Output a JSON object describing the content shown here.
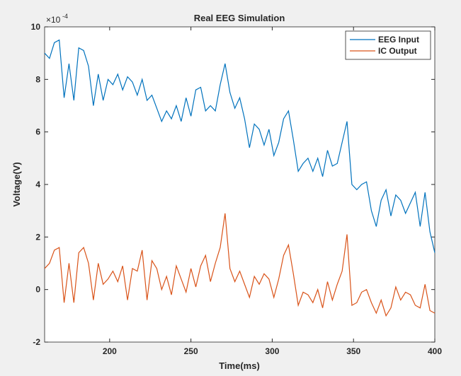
{
  "chart_data": {
    "type": "line",
    "title": "Real EEG Simulation",
    "x_label": "Time(ms)",
    "y_label": "Voltage(V)",
    "y_exponent_base": "×10",
    "y_exponent_power": "-4",
    "x": [
      160,
      163,
      166,
      169,
      172,
      175,
      178,
      181,
      184,
      187,
      190,
      193,
      196,
      199,
      202,
      205,
      208,
      211,
      214,
      217,
      220,
      223,
      226,
      229,
      232,
      235,
      238,
      241,
      244,
      247,
      250,
      253,
      256,
      259,
      262,
      265,
      268,
      271,
      274,
      277,
      280,
      283,
      286,
      289,
      292,
      295,
      298,
      301,
      304,
      307,
      310,
      313,
      316,
      319,
      322,
      325,
      328,
      331,
      334,
      337,
      340,
      343,
      346,
      349,
      352,
      355,
      358,
      361,
      364,
      367,
      370,
      373,
      376,
      379,
      382,
      385,
      388,
      391,
      394,
      397,
      400
    ],
    "series": [
      {
        "name": "EEG Input",
        "color": "#0072bd",
        "values": [
          9.0,
          8.8,
          9.4,
          9.5,
          7.3,
          8.6,
          7.2,
          9.2,
          9.1,
          8.5,
          7.0,
          8.2,
          7.2,
          8.0,
          7.8,
          8.2,
          7.6,
          8.1,
          7.9,
          7.4,
          8.0,
          7.2,
          7.4,
          6.9,
          6.4,
          6.8,
          6.5,
          7.0,
          6.4,
          7.3,
          6.6,
          7.6,
          7.7,
          6.8,
          7.0,
          6.8,
          7.8,
          8.6,
          7.5,
          6.9,
          7.3,
          6.5,
          5.4,
          6.3,
          6.1,
          5.5,
          6.1,
          5.1,
          5.6,
          6.5,
          6.8,
          5.7,
          4.5,
          4.8,
          5.0,
          4.5,
          5.0,
          4.3,
          5.3,
          4.7,
          4.8,
          5.6,
          6.4,
          4.0,
          3.8,
          4.0,
          4.1,
          3.0,
          2.4,
          3.4,
          3.8,
          2.8,
          3.6,
          3.4,
          2.9,
          3.3,
          3.7,
          2.4,
          3.7,
          2.2,
          1.4
        ]
      },
      {
        "name": "IC Output",
        "color": "#d95319",
        "values": [
          0.8,
          1.0,
          1.5,
          1.6,
          -0.5,
          1.0,
          -0.5,
          1.4,
          1.6,
          1.0,
          -0.4,
          1.0,
          0.2,
          0.4,
          0.7,
          0.3,
          0.9,
          -0.4,
          0.8,
          0.7,
          1.5,
          -0.4,
          1.1,
          0.8,
          0.0,
          0.5,
          -0.2,
          0.9,
          0.4,
          -0.1,
          0.8,
          0.1,
          0.9,
          1.3,
          0.3,
          1.0,
          1.6,
          2.9,
          0.8,
          0.3,
          0.7,
          0.2,
          -0.3,
          0.5,
          0.2,
          0.6,
          0.4,
          -0.3,
          0.4,
          1.3,
          1.7,
          0.6,
          -0.6,
          -0.1,
          -0.2,
          -0.5,
          0.0,
          -0.7,
          0.3,
          -0.4,
          0.2,
          0.7,
          2.1,
          -0.6,
          -0.5,
          -0.1,
          0.0,
          -0.5,
          -0.9,
          -0.4,
          -1.0,
          -0.7,
          0.1,
          -0.4,
          -0.1,
          -0.2,
          -0.6,
          -0.7,
          0.2,
          -0.8,
          -0.9
        ]
      }
    ],
    "xlim": [
      160,
      400
    ],
    "xticks": [
      200,
      250,
      300,
      350,
      400
    ],
    "ylim": [
      -2,
      10
    ],
    "yticks": [
      -2,
      0,
      2,
      4,
      6,
      8,
      10
    ],
    "legend": "top-right"
  }
}
